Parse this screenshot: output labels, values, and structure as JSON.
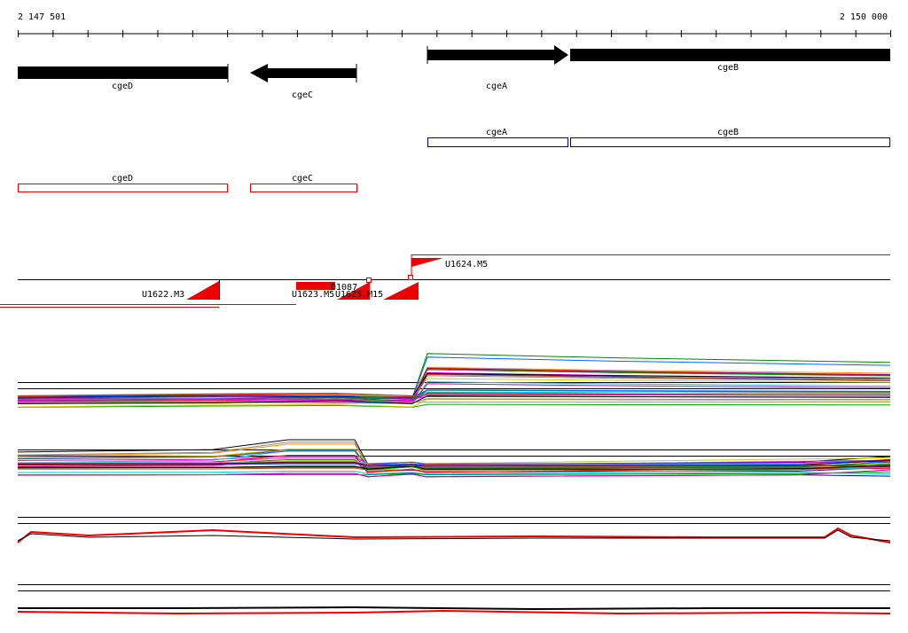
{
  "ruler": {
    "start_label": "2 147 501",
    "end_label": "2 150 000"
  },
  "gene_track": {
    "genes": [
      {
        "label": "cgeD"
      },
      {
        "label": "cgeC"
      },
      {
        "label": "cgeA"
      },
      {
        "label": "cgeB"
      }
    ]
  },
  "blue_track": {
    "boxes": [
      {
        "label": "cgeA"
      },
      {
        "label": "cgeB"
      }
    ]
  },
  "red_track": {
    "boxes": [
      {
        "label": "cgeD"
      },
      {
        "label": "cgeC"
      }
    ]
  },
  "features": [
    {
      "label": "U1624.M5"
    },
    {
      "label": "U1622.M3"
    },
    {
      "label": "U1623.M5"
    },
    {
      "label": "D1087"
    },
    {
      "label": "U1625.M15"
    }
  ]
}
